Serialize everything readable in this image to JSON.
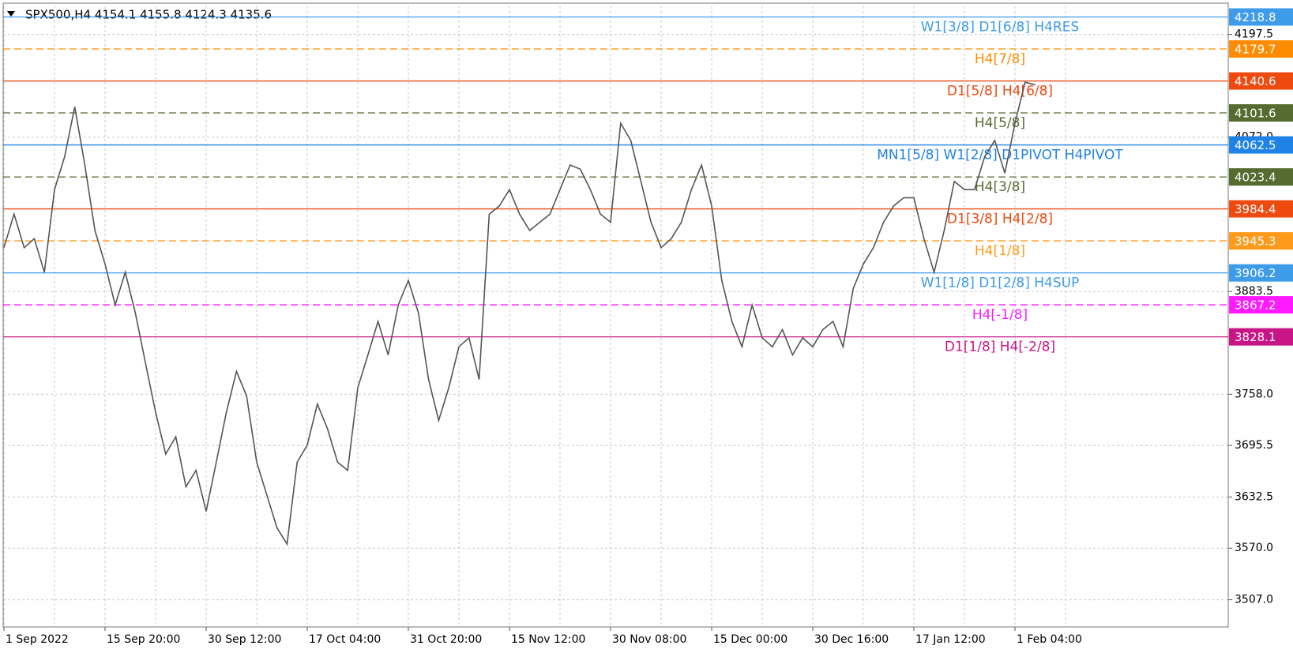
{
  "chart_data": {
    "type": "line",
    "title": "SPX500,H4  4154.1 4155.8 4124.3 4135.6",
    "color": "#555555",
    "categories": [
      "1 Sep 2022",
      null,
      null,
      null,
      null,
      null,
      null,
      null,
      null,
      null,
      "15 Sep 20:00",
      null,
      null,
      null,
      null,
      null,
      null,
      null,
      null,
      null,
      "30 Sep 12:00",
      null,
      null,
      null,
      null,
      null,
      null,
      null,
      null,
      null,
      "17 Oct 04:00",
      null,
      null,
      null,
      null,
      null,
      null,
      null,
      null,
      null,
      "31 Oct 20:00",
      null,
      null,
      null,
      null,
      null,
      null,
      null,
      null,
      null,
      "15 Nov 12:00",
      null,
      null,
      null,
      null,
      null,
      null,
      null,
      null,
      null,
      "30 Nov 08:00",
      null,
      null,
      null,
      null,
      null,
      null,
      null,
      null,
      null,
      "15 Dec 00:00",
      null,
      null,
      null,
      null,
      null,
      null,
      null,
      null,
      null,
      "30 Dec 16:00",
      null,
      null,
      null,
      null,
      null,
      null,
      null,
      null,
      null,
      "17 Jan 12:00",
      null,
      null,
      null,
      null,
      null,
      null,
      null,
      null,
      null,
      "1 Feb 04:00",
      null,
      null
    ],
    "values": [
      3937,
      3978,
      3937,
      3948,
      3907,
      4008,
      4048,
      4109,
      4038,
      3958,
      3917,
      3867,
      3907,
      3857,
      3796,
      3736,
      3685,
      3706,
      3645,
      3665,
      3615,
      3675,
      3736,
      3786,
      3756,
      3675,
      3635,
      3595,
      3575,
      3675,
      3696,
      3746,
      3716,
      3675,
      3665,
      3766,
      3806,
      3847,
      3806,
      3867,
      3897,
      3857,
      3776,
      3726,
      3766,
      3816,
      3827,
      3776,
      3978,
      3988,
      4008,
      3978,
      3958,
      3968,
      3978,
      4008,
      4038,
      4033,
      4008,
      3978,
      3968,
      4089,
      4068,
      4018,
      3968,
      3937,
      3948,
      3968,
      4008,
      4038,
      3988,
      3897,
      3847,
      3816,
      3867,
      3827,
      3816,
      3837,
      3806,
      3827,
      3816,
      3837,
      3847,
      3816,
      3887,
      3917,
      3937,
      3968,
      3988,
      3998,
      3998,
      3948,
      3907,
      3958,
      4018,
      4008,
      4008,
      4048,
      4068,
      4028,
      4089,
      4139,
      4136
    ],
    "ylim": [
      3473.8,
      4231.8
    ],
    "yticks": [
      {
        "value": 3507,
        "label": "3507.0"
      },
      {
        "value": 3570,
        "label": "3570.0"
      },
      3632.5,
      3695.5,
      {
        "value": 3758,
        "label": "3758.0"
      },
      3883.5,
      {
        "value": 4072,
        "label": "4072.0"
      },
      4197.5
    ],
    "grid": true,
    "levels": [
      {
        "label": "W1[3/8] D1[6/8] H4RES",
        "value": 4218.8,
        "color": "#3d9be9",
        "style": "solid"
      },
      {
        "label": "H4[7/8]",
        "value": 4179.7,
        "color": "#ff8c00",
        "style": "dashed"
      },
      {
        "label": "D1[5/8] H4[6/8]",
        "value": 4140.6,
        "color": "#ee4a10",
        "style": "solid"
      },
      {
        "label": "H4[5/8]",
        "value": 4101.6,
        "color": "#556b2f",
        "style": "dashed"
      },
      {
        "label": "MN1[5/8] W1[2/8] D1PIVOT H4PIVOT",
        "value": 4062.5,
        "color": "#1e82e6",
        "style": "solid"
      },
      {
        "label": "H4[3/8]",
        "value": 4023.4,
        "color": "#556b2f",
        "style": "dashed"
      },
      {
        "label": "D1[3/8] H4[2/8]",
        "value": 3984.4,
        "color": "#ee4a10",
        "style": "solid"
      },
      {
        "label": "H4[1/8]",
        "value": 3945.3,
        "color": "#ff9a1a",
        "style": "dashed"
      },
      {
        "label": "W1[1/8] D1[2/8] H4SUP",
        "value": 3906.2,
        "color": "#3d9be9",
        "style": "solid"
      },
      {
        "label": "H4[-1/8]",
        "value": 3867.2,
        "color": "#ff1aff",
        "style": "dashed"
      },
      {
        "label": "D1[1/8] H4[-2/8]",
        "value": 3828.1,
        "color": "#c71585",
        "style": "solid"
      }
    ]
  }
}
